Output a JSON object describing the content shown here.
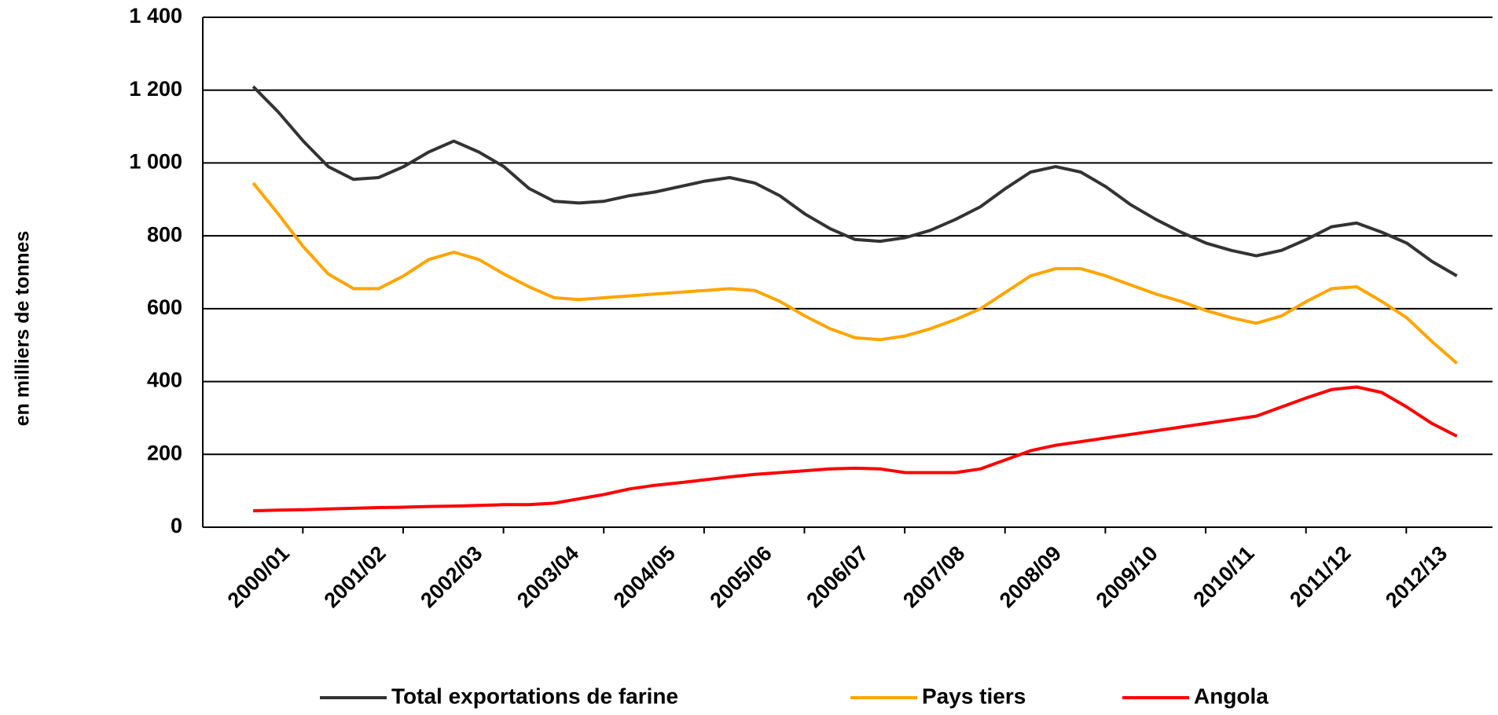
{
  "chart_data": {
    "type": "line",
    "y_label": "en milliers de tonnes",
    "categories": [
      "2000/01",
      null,
      null,
      null,
      "2001/02",
      null,
      null,
      null,
      "2002/03",
      null,
      null,
      null,
      "2003/04",
      null,
      null,
      null,
      "2004/05",
      null,
      null,
      null,
      "2005/06",
      null,
      null,
      null,
      "2006/07",
      null,
      null,
      null,
      "2007/08",
      null,
      null,
      null,
      "2008/09",
      null,
      null,
      null,
      "2009/10",
      null,
      null,
      null,
      "2010/11",
      null,
      null,
      null,
      "2011/12",
      null,
      null,
      null,
      "2012/13"
    ],
    "series": [
      {
        "name": "Total exportations de farine",
        "color": "#333333",
        "values": [
          1210,
          1140,
          1060,
          990,
          955,
          960,
          990,
          1030,
          1060,
          1030,
          990,
          930,
          895,
          890,
          895,
          910,
          920,
          935,
          950,
          960,
          945,
          910,
          860,
          820,
          790,
          785,
          795,
          815,
          845,
          880,
          930,
          975,
          990,
          975,
          935,
          885,
          845,
          810,
          780,
          760,
          745,
          760,
          790,
          825,
          835,
          810,
          780,
          730,
          690
        ]
      },
      {
        "name": "Pays tiers",
        "color": "#ffa500",
        "values": [
          945,
          860,
          770,
          695,
          655,
          655,
          690,
          735,
          755,
          735,
          695,
          660,
          630,
          625,
          630,
          635,
          640,
          645,
          650,
          655,
          650,
          620,
          580,
          545,
          520,
          515,
          525,
          545,
          570,
          600,
          645,
          690,
          710,
          710,
          690,
          665,
          640,
          620,
          595,
          575,
          560,
          580,
          620,
          655,
          660,
          620,
          575,
          510,
          450
        ]
      },
      {
        "name": "Angola",
        "color": "#ff0000",
        "values": [
          45,
          47,
          48,
          50,
          52,
          54,
          55,
          57,
          58,
          60,
          62,
          62,
          66,
          78,
          90,
          105,
          115,
          122,
          130,
          138,
          145,
          150,
          155,
          160,
          162,
          160,
          150,
          150,
          150,
          160,
          185,
          210,
          225,
          235,
          245,
          255,
          265,
          275,
          285,
          295,
          305,
          330,
          355,
          378,
          385,
          370,
          330,
          285,
          250
        ]
      }
    ],
    "ylim": [
      0,
      1400
    ],
    "yticks": [
      0,
      200,
      400,
      600,
      800,
      {
        "value": 1000,
        "label": "1 000"
      },
      {
        "value": 1200,
        "label": "1 200"
      },
      {
        "value": 1400,
        "label": "1 400"
      }
    ],
    "grid": true
  }
}
